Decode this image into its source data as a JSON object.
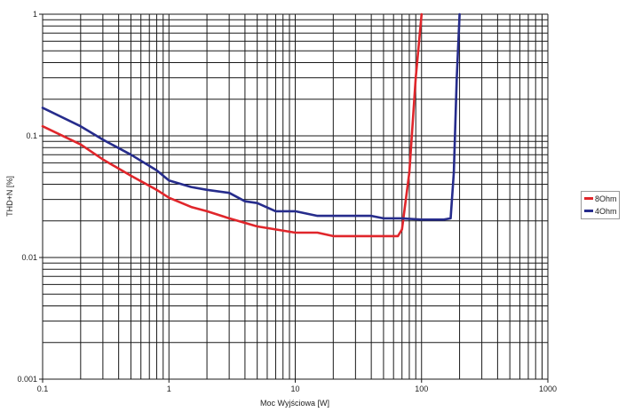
{
  "chart_data": {
    "type": "line",
    "title": "",
    "xlabel": "Moc Wyjściowa [W]",
    "ylabel": "THD+N [%]",
    "xscale": "log",
    "yscale": "log",
    "xlim": [
      0.1,
      1000
    ],
    "ylim": [
      0.001,
      1
    ],
    "x_ticks": [
      "0.1",
      "1",
      "10",
      "100",
      "1000"
    ],
    "y_ticks": [
      "0.001",
      "0.01",
      "0.1",
      "1"
    ],
    "grid": true,
    "legend_position": "right",
    "series": [
      {
        "name": "8Ohm",
        "color": "#e0262b",
        "x": [
          0.1,
          0.2,
          0.3,
          0.5,
          0.8,
          1,
          1.5,
          2,
          3,
          5,
          7,
          10,
          15,
          20,
          30,
          50,
          65,
          70,
          80,
          90,
          100
        ],
        "y": [
          0.12,
          0.085,
          0.064,
          0.047,
          0.036,
          0.031,
          0.026,
          0.024,
          0.021,
          0.018,
          0.017,
          0.016,
          0.016,
          0.015,
          0.015,
          0.015,
          0.015,
          0.017,
          0.05,
          0.3,
          1.0
        ]
      },
      {
        "name": "4Ohm",
        "color": "#262c8c",
        "x": [
          0.1,
          0.2,
          0.3,
          0.5,
          0.8,
          1,
          1.5,
          2,
          3,
          4,
          5,
          7,
          10,
          15,
          20,
          30,
          40,
          50,
          70,
          100,
          150,
          170,
          180,
          190,
          200
        ],
        "y": [
          0.17,
          0.12,
          0.093,
          0.07,
          0.052,
          0.043,
          0.038,
          0.036,
          0.034,
          0.029,
          0.028,
          0.024,
          0.024,
          0.022,
          0.022,
          0.022,
          0.022,
          0.021,
          0.021,
          0.0205,
          0.0205,
          0.021,
          0.05,
          0.3,
          1.0
        ]
      }
    ]
  },
  "axes": {
    "xlabel": "Moc Wyjściowa [W]",
    "ylabel": "THD+N [%]",
    "x_ticks": [
      "0.1",
      "1",
      "10",
      "100",
      "1000"
    ],
    "y_ticks": [
      "1",
      "0.1",
      "0.01",
      "0.001"
    ]
  },
  "legend": {
    "items": [
      {
        "label": "8Ohm",
        "color": "#e0262b"
      },
      {
        "label": "4Ohm",
        "color": "#262c8c"
      }
    ]
  }
}
